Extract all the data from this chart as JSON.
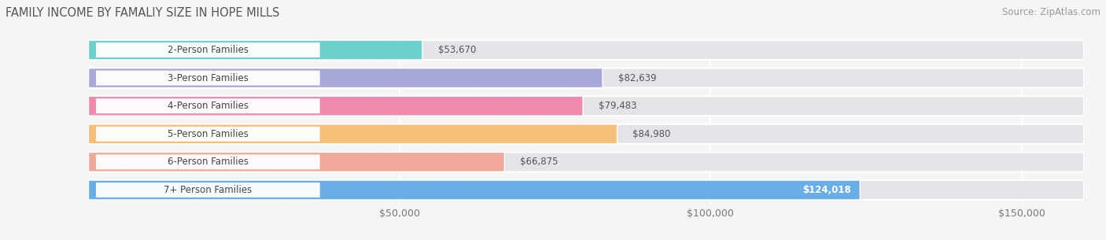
{
  "title": "FAMILY INCOME BY FAMALIY SIZE IN HOPE MILLS",
  "source": "Source: ZipAtlas.com",
  "categories": [
    "2-Person Families",
    "3-Person Families",
    "4-Person Families",
    "5-Person Families",
    "6-Person Families",
    "7+ Person Families"
  ],
  "values": [
    53670,
    82639,
    79483,
    84980,
    66875,
    124018
  ],
  "bar_colors": [
    "#6dd0cc",
    "#a9a9d9",
    "#f08aab",
    "#f5bf7a",
    "#f0a898",
    "#6aaee8"
  ],
  "value_labels": [
    "$53,670",
    "$82,639",
    "$79,483",
    "$84,980",
    "$66,875",
    "$124,018"
  ],
  "xlim": [
    0,
    160000
  ],
  "xtick_positions": [
    50000,
    100000,
    150000
  ],
  "xtick_labels": [
    "$50,000",
    "$100,000",
    "$150,000"
  ],
  "background_color": "#f5f5f5",
  "bar_background_color": "#e4e4e8",
  "title_fontsize": 10.5,
  "source_fontsize": 8.5,
  "bar_height": 0.7,
  "label_fontsize": 8.5,
  "value_fontsize": 8.5
}
